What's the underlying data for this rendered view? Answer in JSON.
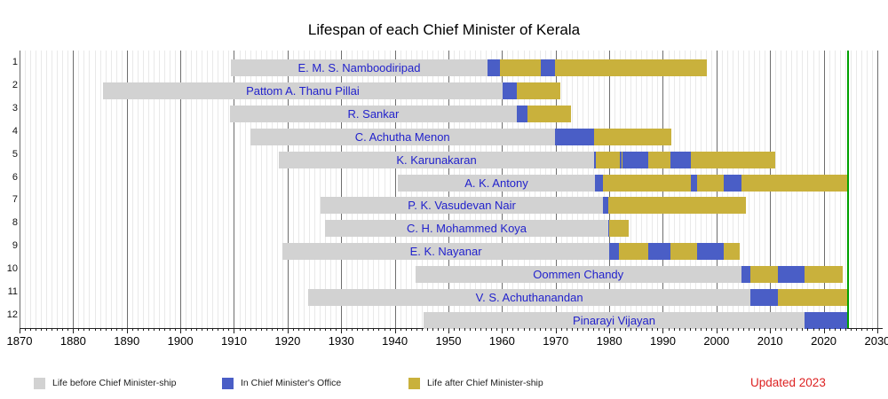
{
  "title": "Lifespan of each Chief Minister of Kerala",
  "updated_note": "Updated 2023",
  "legend": {
    "before": {
      "label": "Life before Chief Minister-ship",
      "color": "#d2d2d2"
    },
    "office": {
      "label": "In Chief Minister's Office",
      "color": "#4a5ec6"
    },
    "after": {
      "label": "Life after Chief Minister-ship",
      "color": "#c9b13c"
    }
  },
  "colors": {
    "now_line": "#00a000",
    "bar_name_text": "#2222cc",
    "updated_text": "#dd2222",
    "grid_decade": "#6e6e6e",
    "grid_year": "#e9e9e9",
    "axis": "#222222"
  },
  "chart_data": {
    "type": "bar",
    "subtype": "horizontal-stacked-gantt-timeline",
    "title": "Lifespan of each Chief Minister of Kerala",
    "xlabel": "",
    "ylabel": "",
    "grid": true,
    "legend_position": "bottom",
    "x_axis": {
      "min": 1870,
      "max": 2030,
      "max_render": 2031,
      "tick_interval": 10,
      "tick_labels": [
        "1870",
        "1880",
        "1890",
        "1900",
        "1910",
        "1920",
        "1930",
        "1940",
        "1950",
        "1960",
        "1970",
        "1980",
        "1990",
        "2000",
        "2010",
        "2020",
        "2030"
      ]
    },
    "now_year": 2024.35,
    "segment_kinds": {
      "before": "Life before Chief Minister-ship",
      "office": "In Chief Minister's Office",
      "after": "Life after Chief Minister-ship"
    },
    "rows": [
      {
        "index": 1,
        "name": "E. M. S. Namboodiripad",
        "segments": [
          {
            "kind": "before",
            "start": 1909.4,
            "end": 1957.3
          },
          {
            "kind": "office",
            "start": 1957.3,
            "end": 1959.6
          },
          {
            "kind": "after",
            "start": 1959.6,
            "end": 1967.2
          },
          {
            "kind": "office",
            "start": 1967.2,
            "end": 1969.85
          },
          {
            "kind": "after",
            "start": 1969.85,
            "end": 1998.25
          }
        ]
      },
      {
        "index": 2,
        "name": "Pattom A. Thanu Pillai",
        "segments": [
          {
            "kind": "before",
            "start": 1885.5,
            "end": 1960.15
          },
          {
            "kind": "office",
            "start": 1960.15,
            "end": 1962.7
          },
          {
            "kind": "after",
            "start": 1962.7,
            "end": 1970.8
          }
        ]
      },
      {
        "index": 3,
        "name": "R. Sankar",
        "segments": [
          {
            "kind": "before",
            "start": 1909.3,
            "end": 1962.7
          },
          {
            "kind": "office",
            "start": 1962.7,
            "end": 1964.75
          },
          {
            "kind": "after",
            "start": 1964.75,
            "end": 1972.85
          }
        ]
      },
      {
        "index": 4,
        "name": "C. Achutha Menon",
        "segments": [
          {
            "kind": "before",
            "start": 1913.0,
            "end": 1969.85
          },
          {
            "kind": "office",
            "start": 1969.85,
            "end": 1977.2
          },
          {
            "kind": "after",
            "start": 1977.2,
            "end": 1991.6
          }
        ]
      },
      {
        "index": 5,
        "name": "K. Karunakaran",
        "segments": [
          {
            "kind": "before",
            "start": 1918.3,
            "end": 1977.25
          },
          {
            "kind": "office",
            "start": 1977.25,
            "end": 1977.45
          },
          {
            "kind": "after",
            "start": 1977.45,
            "end": 1981.95
          },
          {
            "kind": "office",
            "start": 1981.95,
            "end": 1982.25
          },
          {
            "kind": "after",
            "start": 1982.25,
            "end": 1982.4
          },
          {
            "kind": "office",
            "start": 1982.4,
            "end": 1987.2
          },
          {
            "kind": "after",
            "start": 1987.2,
            "end": 1991.45
          },
          {
            "kind": "office",
            "start": 1991.45,
            "end": 1995.2
          },
          {
            "kind": "after",
            "start": 1995.2,
            "end": 2010.95
          }
        ]
      },
      {
        "index": 6,
        "name": "A. K. Antony",
        "segments": [
          {
            "kind": "before",
            "start": 1940.6,
            "end": 1977.3
          },
          {
            "kind": "office",
            "start": 1977.3,
            "end": 1978.8
          },
          {
            "kind": "after",
            "start": 1978.8,
            "end": 1995.2
          },
          {
            "kind": "office",
            "start": 1995.2,
            "end": 1996.4
          },
          {
            "kind": "after",
            "start": 1996.4,
            "end": 2001.4
          },
          {
            "kind": "office",
            "start": 2001.4,
            "end": 2004.65
          },
          {
            "kind": "after",
            "start": 2004.65,
            "end": 2024.35
          }
        ]
      },
      {
        "index": 7,
        "name": "P. K. Vasudevan Nair",
        "segments": [
          {
            "kind": "before",
            "start": 1926.2,
            "end": 1978.8
          },
          {
            "kind": "office",
            "start": 1978.8,
            "end": 1979.8
          },
          {
            "kind": "after",
            "start": 1979.8,
            "end": 2005.55
          }
        ]
      },
      {
        "index": 8,
        "name": "C. H. Mohammed Koya",
        "segments": [
          {
            "kind": "before",
            "start": 1927.0,
            "end": 1979.8
          },
          {
            "kind": "office",
            "start": 1979.8,
            "end": 1980.0
          },
          {
            "kind": "after",
            "start": 1980.0,
            "end": 1983.7
          }
        ]
      },
      {
        "index": 9,
        "name": "E. K. Nayanar",
        "segments": [
          {
            "kind": "before",
            "start": 1919.0,
            "end": 1980.05
          },
          {
            "kind": "office",
            "start": 1980.05,
            "end": 1981.8
          },
          {
            "kind": "after",
            "start": 1981.8,
            "end": 1987.2
          },
          {
            "kind": "office",
            "start": 1987.2,
            "end": 1991.45
          },
          {
            "kind": "after",
            "start": 1991.45,
            "end": 1996.4
          },
          {
            "kind": "office",
            "start": 1996.4,
            "end": 2001.35
          },
          {
            "kind": "after",
            "start": 2001.35,
            "end": 2004.4
          }
        ]
      },
      {
        "index": 10,
        "name": "Oommen Chandy",
        "segments": [
          {
            "kind": "before",
            "start": 1943.8,
            "end": 2004.65
          },
          {
            "kind": "office",
            "start": 2004.65,
            "end": 2006.4
          },
          {
            "kind": "after",
            "start": 2006.4,
            "end": 2011.4
          },
          {
            "kind": "office",
            "start": 2011.4,
            "end": 2016.4
          },
          {
            "kind": "after",
            "start": 2016.4,
            "end": 2023.55
          }
        ]
      },
      {
        "index": 11,
        "name": "V. S. Achuthanandan",
        "segments": [
          {
            "kind": "before",
            "start": 1923.8,
            "end": 2006.4
          },
          {
            "kind": "office",
            "start": 2006.4,
            "end": 2011.4
          },
          {
            "kind": "after",
            "start": 2011.4,
            "end": 2024.35
          }
        ]
      },
      {
        "index": 12,
        "name": "Pinarayi Vijayan",
        "segments": [
          {
            "kind": "before",
            "start": 1945.4,
            "end": 2016.4
          },
          {
            "kind": "office",
            "start": 2016.4,
            "end": 2024.35
          }
        ]
      }
    ]
  }
}
